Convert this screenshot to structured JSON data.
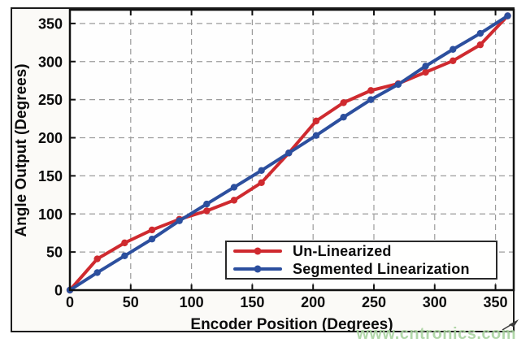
{
  "chart_data": {
    "type": "line",
    "title": "",
    "xlabel": "Encoder Position (Degrees)",
    "ylabel": "Angle Output (Degrees)",
    "x": [
      0,
      22.5,
      45,
      67.5,
      90,
      112.5,
      135,
      157.5,
      180,
      202.5,
      225,
      247.5,
      270,
      292.5,
      315,
      337.5,
      360
    ],
    "series": [
      {
        "name": "Un-Linearized",
        "color": "#cf2a2f",
        "marker": "circle",
        "values": [
          0,
          41,
          62,
          79,
          93,
          104,
          118,
          141,
          180,
          222,
          246,
          262,
          271,
          286,
          301,
          322,
          360
        ]
      },
      {
        "name": "Segmented Linearization",
        "color": "#2c4f9e",
        "marker": "circle",
        "values": [
          0,
          23,
          45,
          67,
          91,
          113,
          135,
          157,
          180,
          203,
          227,
          250,
          270,
          294,
          316,
          337,
          360
        ]
      }
    ],
    "xlim": [
      0,
      365
    ],
    "ylim": [
      0,
      368
    ],
    "xticks": [
      0,
      50,
      100,
      150,
      200,
      250,
      300,
      350
    ],
    "yticks": [
      0,
      50,
      100,
      150,
      200,
      250,
      300,
      350
    ],
    "grid": true,
    "grid_style": "dashed",
    "legend_position": "lower right"
  },
  "watermark": {
    "text": "www.cntronics.com",
    "color": "#a9d3a0"
  }
}
